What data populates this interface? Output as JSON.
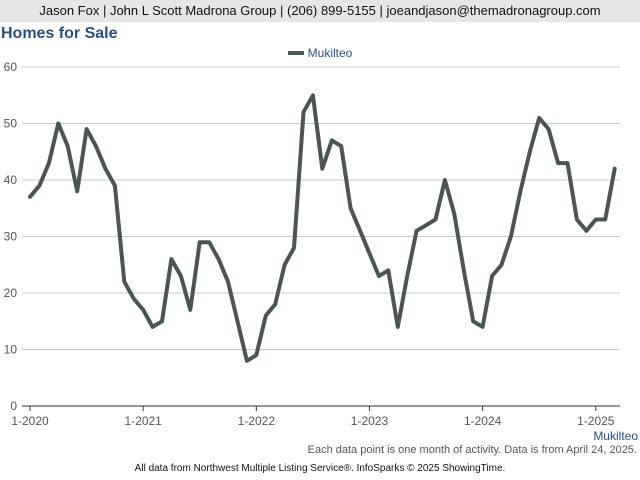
{
  "header": {
    "contact": "Jason Fox | John L Scott Madrona Group | (206) 899-5155 | joeandjason@themadronagroup.com"
  },
  "page": {
    "title": "Homes for Sale"
  },
  "footnote": "Each data point is one month of activity. Data is from April 24, 2025.",
  "credit": "All data from Northwest Multiple Listing Service®. InfoSparks © 2025 ShowingTime.",
  "colors": {
    "series": "#4c5552",
    "title": "#2b4f7a",
    "grid": "#c8c8c8",
    "axis": "#555555"
  },
  "chart_data": {
    "type": "line",
    "title": "Homes for Sale",
    "xlabel": "",
    "ylabel": "",
    "ylim": [
      0,
      60
    ],
    "y_ticks": [
      0,
      10,
      20,
      30,
      40,
      50,
      60
    ],
    "x_tick_labels": [
      "1-2020",
      "1-2021",
      "1-2022",
      "1-2023",
      "1-2024",
      "1-2025"
    ],
    "x_axis_end_label": "Mukilteo",
    "grid": true,
    "legend": "top-center",
    "x": [
      "2020-01",
      "2020-02",
      "2020-03",
      "2020-04",
      "2020-05",
      "2020-06",
      "2020-07",
      "2020-08",
      "2020-09",
      "2020-10",
      "2020-11",
      "2020-12",
      "2021-01",
      "2021-02",
      "2021-03",
      "2021-04",
      "2021-05",
      "2021-06",
      "2021-07",
      "2021-08",
      "2021-09",
      "2021-10",
      "2021-11",
      "2021-12",
      "2022-01",
      "2022-02",
      "2022-03",
      "2022-04",
      "2022-05",
      "2022-06",
      "2022-07",
      "2022-08",
      "2022-09",
      "2022-10",
      "2022-11",
      "2022-12",
      "2023-01",
      "2023-02",
      "2023-03",
      "2023-04",
      "2023-05",
      "2023-06",
      "2023-07",
      "2023-08",
      "2023-09",
      "2023-10",
      "2023-11",
      "2023-12",
      "2024-01",
      "2024-02",
      "2024-03",
      "2024-04",
      "2024-05",
      "2024-06",
      "2024-07",
      "2024-08",
      "2024-09",
      "2024-10",
      "2024-11",
      "2024-12",
      "2025-01",
      "2025-02",
      "2025-03"
    ],
    "series": [
      {
        "name": "Mukilteo",
        "values": [
          37,
          39,
          43,
          50,
          46,
          38,
          49,
          46,
          42,
          39,
          22,
          19,
          17,
          14,
          15,
          26,
          23,
          17,
          29,
          29,
          26,
          22,
          15,
          8,
          9,
          16,
          18,
          25,
          28,
          52,
          55,
          42,
          47,
          46,
          35,
          31,
          27,
          23,
          24,
          14,
          23,
          31,
          32,
          33,
          40,
          34,
          24,
          15,
          14,
          23,
          25,
          30,
          38,
          45,
          51,
          49,
          43,
          43,
          33,
          31,
          33,
          33,
          42
        ]
      }
    ]
  }
}
